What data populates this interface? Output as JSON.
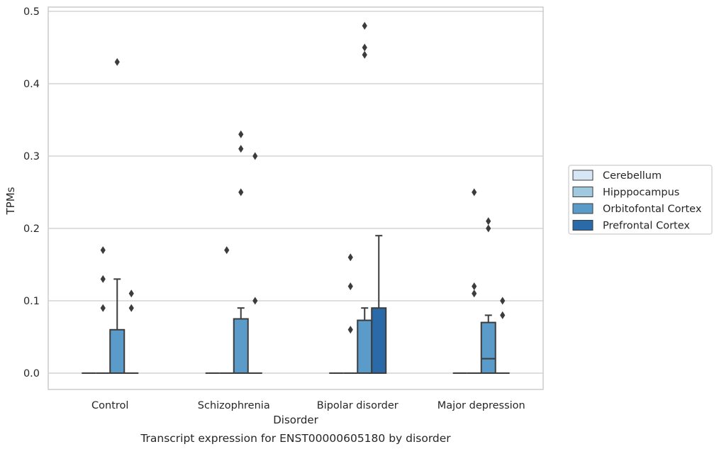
{
  "chart_data": {
    "type": "box",
    "title": "Transcript expression for ENST00000605180 by disorder",
    "xlabel": "Disorder",
    "ylabel": "TPMs",
    "ylim": [
      -0.024,
      0.505
    ],
    "yticks": [
      "0.0",
      "0.1",
      "0.2",
      "0.3",
      "0.4",
      "0.5"
    ],
    "ytick_values": [
      0.0,
      0.1,
      0.2,
      0.3,
      0.4,
      0.5
    ],
    "grid": "horizontal",
    "legend_position": "right",
    "categories": [
      "Control",
      "Schizophrenia",
      "Bipolar disorder",
      "Major depression"
    ],
    "series": [
      {
        "name": "Cerebellum",
        "color": "#d6e6f4",
        "boxes": [
          {
            "q1": 0,
            "median": 0,
            "q3": 0,
            "whislo": 0,
            "whishi": 0,
            "fliers": []
          },
          {
            "q1": 0,
            "median": 0,
            "q3": 0,
            "whislo": 0,
            "whishi": 0,
            "fliers": []
          },
          {
            "q1": 0,
            "median": 0,
            "q3": 0,
            "whislo": 0,
            "whishi": 0,
            "fliers": []
          },
          {
            "q1": 0,
            "median": 0,
            "q3": 0,
            "whislo": 0,
            "whishi": 0,
            "fliers": []
          }
        ]
      },
      {
        "name": "Hipppocampus",
        "color": "#a0c8de",
        "boxes": [
          {
            "q1": 0,
            "median": 0,
            "q3": 0,
            "whislo": 0,
            "whishi": 0,
            "fliers": [
              0.09,
              0.13,
              0.17
            ]
          },
          {
            "q1": 0,
            "median": 0,
            "q3": 0,
            "whislo": 0,
            "whishi": 0,
            "fliers": [
              0.17
            ]
          },
          {
            "q1": 0,
            "median": 0,
            "q3": 0,
            "whislo": 0,
            "whishi": 0,
            "fliers": [
              0.06,
              0.12,
              0.16
            ]
          },
          {
            "q1": 0,
            "median": 0,
            "q3": 0,
            "whislo": 0,
            "whishi": 0,
            "fliers": [
              0.11,
              0.12,
              0.25
            ]
          }
        ]
      },
      {
        "name": "Orbitofontal Cortex",
        "color": "#5a9bc9",
        "boxes": [
          {
            "q1": 0,
            "median": 0,
            "q3": 0.06,
            "whislo": 0,
            "whishi": 0.13,
            "fliers": [
              0.43
            ]
          },
          {
            "q1": 0,
            "median": 0,
            "q3": 0.075,
            "whislo": 0,
            "whishi": 0.09,
            "fliers": [
              0.25,
              0.31,
              0.33
            ]
          },
          {
            "q1": 0,
            "median": 0,
            "q3": 0.073,
            "whislo": 0,
            "whishi": 0.09,
            "fliers": [
              0.44,
              0.45,
              0.48
            ]
          },
          {
            "q1": 0,
            "median": 0.02,
            "q3": 0.07,
            "whislo": 0,
            "whishi": 0.08,
            "fliers": [
              0.2,
              0.21
            ]
          }
        ]
      },
      {
        "name": "Prefrontal Cortex",
        "color": "#2a6aa8",
        "boxes": [
          {
            "q1": 0,
            "median": 0,
            "q3": 0,
            "whislo": 0,
            "whishi": 0,
            "fliers": [
              0.09,
              0.11
            ]
          },
          {
            "q1": 0,
            "median": 0,
            "q3": 0,
            "whislo": 0,
            "whishi": 0,
            "fliers": [
              0.1,
              0.3
            ]
          },
          {
            "q1": 0,
            "median": 0,
            "q3": 0.09,
            "whislo": 0,
            "whishi": 0.19,
            "fliers": []
          },
          {
            "q1": 0,
            "median": 0,
            "q3": 0,
            "whislo": 0,
            "whishi": 0,
            "fliers": [
              0.08,
              0.1
            ]
          }
        ]
      }
    ]
  }
}
